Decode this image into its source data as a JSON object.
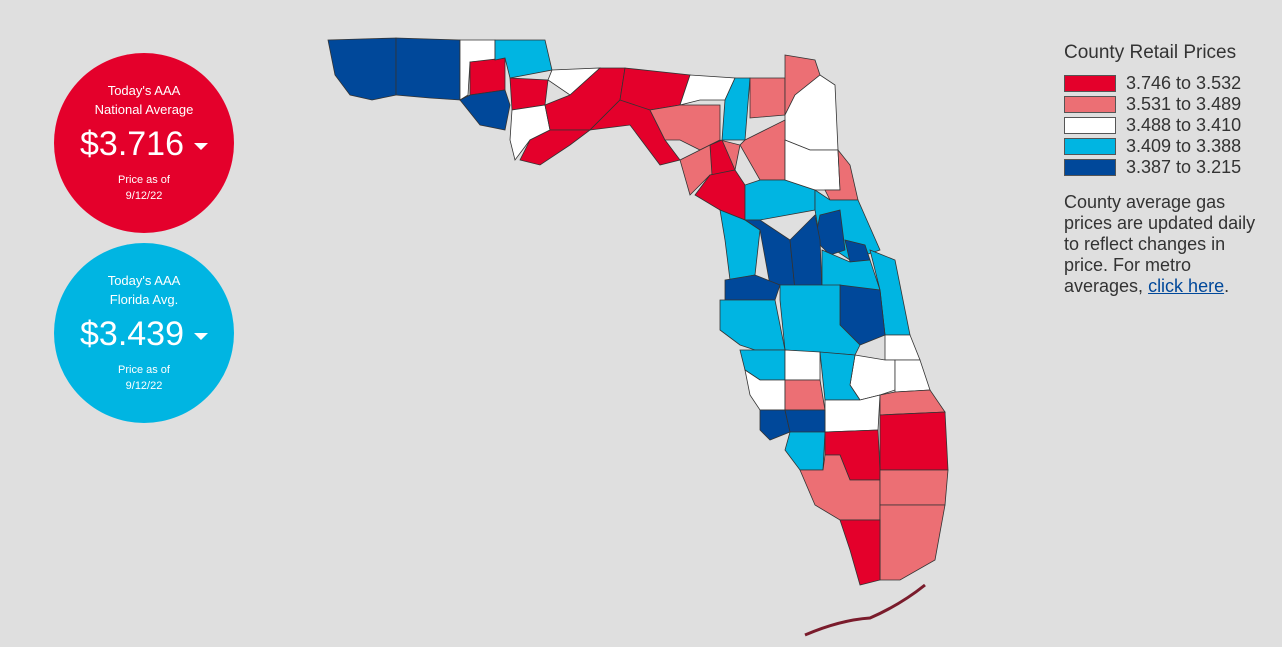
{
  "national": {
    "heading_1": "Today's AAA",
    "heading_2": "National Average",
    "price": "$3.716",
    "date_label": "Price as of",
    "date": "9/12/22"
  },
  "florida": {
    "heading_1": "Today's AAA",
    "heading_2": "Florida Avg.",
    "price": "$3.439",
    "date_label": "Price as of",
    "date": "9/12/22"
  },
  "legend": {
    "title": "County Retail Prices",
    "items": [
      {
        "label": "3.746 to 3.532",
        "color": "#e4002b"
      },
      {
        "label": "3.531 to 3.489",
        "color": "#ec6f74"
      },
      {
        "label": "3.488 to 3.410",
        "color": "#ffffff"
      },
      {
        "label": "3.409 to 3.388",
        "color": "#00b5e2"
      },
      {
        "label": "3.387 to 3.215",
        "color": "#00489a"
      }
    ]
  },
  "note": {
    "text": "County average gas prices are updated daily to reflect changes in price. For metro averages, ",
    "link": "click here",
    "end": "."
  }
}
